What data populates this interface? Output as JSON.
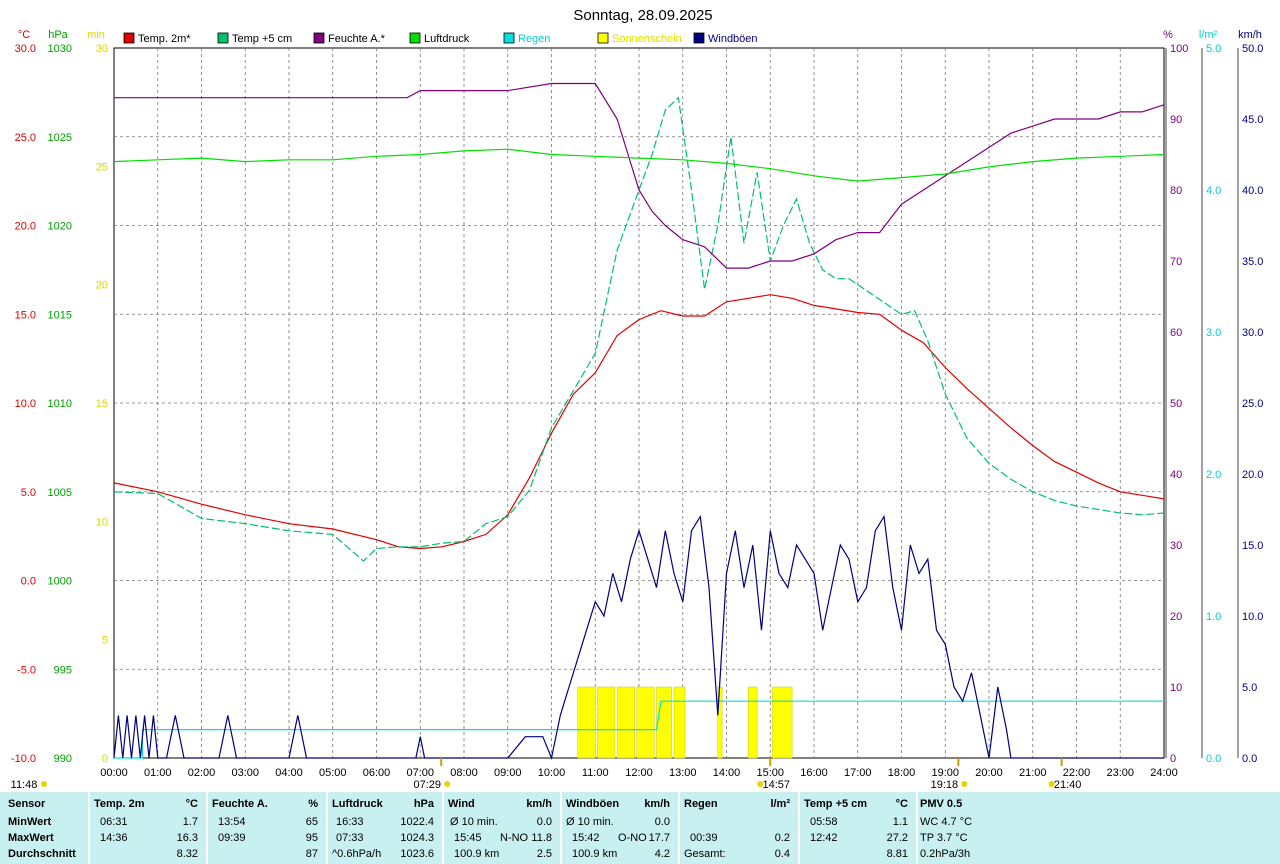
{
  "chart_data": {
    "type": "line",
    "title": "Sonntag, 28.09.2025",
    "x_range": [
      0,
      24
    ],
    "x_ticks": [
      "00:00",
      "01:00",
      "02:00",
      "03:00",
      "04:00",
      "05:00",
      "06:00",
      "07:00",
      "08:00",
      "09:00",
      "10:00",
      "11:00",
      "12:00",
      "13:00",
      "14:00",
      "15:00",
      "16:00",
      "17:00",
      "18:00",
      "19:00",
      "20:00",
      "21:00",
      "22:00",
      "23:00",
      "24:00"
    ],
    "grid": true,
    "legend_position": "top",
    "axes": {
      "temp": {
        "unit": "°C",
        "range": [
          -10,
          30
        ],
        "ticks": [
          "30.0",
          "25.0",
          "20.0",
          "15.0",
          "10.0",
          "5.0",
          "0.0",
          "-5.0",
          "-10.0"
        ],
        "color": "#e00000"
      },
      "pressure": {
        "unit": "hPa",
        "range": [
          990,
          1030
        ],
        "ticks": [
          "1030",
          "1025",
          "1020",
          "1015",
          "1010",
          "1005",
          "1000",
          "995",
          "990"
        ],
        "color": "#00a000"
      },
      "sun": {
        "unit": "min",
        "range": [
          0,
          30
        ],
        "ticks": [
          "30",
          "25",
          "20",
          "15",
          "10",
          "5",
          "0"
        ],
        "color": "#d8d800"
      },
      "humidity": {
        "unit": "%",
        "range": [
          0,
          100
        ],
        "ticks": [
          "100",
          "90",
          "80",
          "70",
          "60",
          "50",
          "40",
          "30",
          "20",
          "10",
          "0"
        ],
        "color": "#800080"
      },
      "rain": {
        "unit": "l/m²",
        "range": [
          0,
          5
        ],
        "ticks": [
          "5.0",
          "4.0",
          "3.0",
          "2.0",
          "1.0",
          "0.0"
        ],
        "color": "#00d0d0"
      },
      "wind": {
        "unit": "km/h",
        "range": [
          0,
          50
        ],
        "ticks": [
          "50.0",
          "45.0",
          "40.0",
          "35.0",
          "30.0",
          "25.0",
          "20.0",
          "15.0",
          "10.0",
          "5.0",
          "0.0"
        ],
        "color": "#000080"
      }
    },
    "series": [
      {
        "name": "Temp. 2m*",
        "color": "#e00000",
        "axis": "temp",
        "x": [
          0,
          1,
          2,
          3,
          4,
          5,
          6,
          6.5,
          7,
          7.5,
          8,
          8.5,
          9,
          9.5,
          10,
          10.5,
          11,
          11.5,
          12,
          12.5,
          13,
          13.5,
          14,
          14.5,
          15,
          15.5,
          16,
          16.5,
          17,
          17.5,
          18,
          18.5,
          19,
          19.5,
          20,
          20.5,
          21,
          21.5,
          22,
          22.5,
          23,
          23.5,
          24
        ],
        "y": [
          5.5,
          5.0,
          4.3,
          3.7,
          3.2,
          2.9,
          2.3,
          1.9,
          1.8,
          1.9,
          2.2,
          2.6,
          3.7,
          5.8,
          8.3,
          10.5,
          11.7,
          13.8,
          14.7,
          15.2,
          14.9,
          14.9,
          15.7,
          15.9,
          16.1,
          15.9,
          15.5,
          15.3,
          15.1,
          15.0,
          14.1,
          13.4,
          12.0,
          10.8,
          9.7,
          8.6,
          7.6,
          6.7,
          6.1,
          5.5,
          5.0,
          4.8,
          4.6
        ]
      },
      {
        "name": "Temp +5 cm",
        "color": "#00c070",
        "axis": "temp",
        "x": [
          0,
          1,
          2,
          3,
          4,
          5,
          5.7,
          6,
          6.5,
          7,
          7.5,
          8,
          8.5,
          9,
          9.5,
          10,
          10.5,
          11,
          11.5,
          12,
          12.3,
          12.6,
          12.9,
          13.2,
          13.5,
          13.8,
          14.1,
          14.4,
          14.7,
          15,
          15.3,
          15.6,
          15.9,
          16.2,
          16.5,
          16.8,
          17.1,
          17.4,
          17.7,
          18,
          18.3,
          18.6,
          19,
          19.5,
          20,
          20.5,
          21,
          21.5,
          22,
          22.5,
          23,
          23.5,
          24
        ],
        "y": [
          5.0,
          4.9,
          3.5,
          3.2,
          2.8,
          2.6,
          1.1,
          1.8,
          1.9,
          1.9,
          2.1,
          2.2,
          3.2,
          3.6,
          5.1,
          8.6,
          10.7,
          12.8,
          18.6,
          22.0,
          24.0,
          26.5,
          27.2,
          22.0,
          16.4,
          20.0,
          25.0,
          19.0,
          23.0,
          18.0,
          20.0,
          21.5,
          19.0,
          17.5,
          17.0,
          17.0,
          16.5,
          16.0,
          15.5,
          15.0,
          15.2,
          13.5,
          10.5,
          8.0,
          6.6,
          5.7,
          5.0,
          4.5,
          4.2,
          4.0,
          3.8,
          3.7,
          3.8
        ]
      },
      {
        "name": "Feuchte A.*",
        "color": "#800080",
        "axis": "humidity",
        "x": [
          0,
          1,
          2,
          3,
          4,
          5,
          6,
          6.7,
          7,
          8,
          9,
          10,
          11,
          11.5,
          12,
          12.3,
          12.6,
          13,
          13.5,
          14,
          14.5,
          15,
          15.5,
          16,
          16.5,
          17,
          17.5,
          18,
          18.5,
          19,
          19.5,
          20,
          20.5,
          21,
          21.5,
          22,
          22.5,
          23,
          23.5,
          24
        ],
        "y": [
          93,
          93,
          93,
          93,
          93,
          93,
          93,
          93,
          94,
          94,
          94,
          95,
          95,
          90,
          80,
          77,
          75,
          73,
          72,
          69,
          69,
          70,
          70,
          71,
          73,
          74,
          74,
          78,
          80,
          82,
          84,
          86,
          88,
          89,
          90,
          90,
          90,
          91,
          91,
          92
        ]
      },
      {
        "name": "Luftdruck",
        "color": "#00e000",
        "axis": "pressure",
        "x": [
          0,
          1,
          2,
          3,
          4,
          5,
          6,
          7,
          8,
          9,
          10,
          11,
          12,
          13,
          14,
          15,
          16,
          17,
          18,
          19,
          20,
          21,
          22,
          23,
          24
        ],
        "y": [
          1023.6,
          1023.7,
          1023.8,
          1023.6,
          1023.7,
          1023.7,
          1023.9,
          1024.0,
          1024.2,
          1024.3,
          1024.0,
          1023.9,
          1023.8,
          1023.7,
          1023.5,
          1023.2,
          1022.8,
          1022.5,
          1022.7,
          1022.9,
          1023.3,
          1023.6,
          1023.8,
          1023.9,
          1024.0
        ]
      },
      {
        "name": "Regen",
        "color": "#00e0e0",
        "axis": "rain",
        "x": [
          0,
          0.65,
          0.65,
          12.4,
          12.4,
          12.5,
          12.5,
          24
        ],
        "y": [
          0,
          0,
          0.2,
          0.2,
          0.2,
          0.4,
          0.4,
          0.4
        ]
      },
      {
        "name": "Sonnenschein",
        "color": "#ffff00",
        "axis": "sun",
        "bars": [
          [
            10.6,
            11.0
          ],
          [
            11.05,
            11.45
          ],
          [
            11.5,
            11.9
          ],
          [
            11.95,
            12.35
          ],
          [
            12.4,
            12.75
          ],
          [
            12.8,
            13.05
          ],
          [
            13.8,
            13.9
          ],
          [
            14.5,
            14.7
          ],
          [
            15.05,
            15.5
          ]
        ],
        "value": 3
      }
    ],
    "windboeen": {
      "name": "Windböen",
      "color": "#000080",
      "axis": "wind",
      "x": [
        0,
        0.1,
        0.2,
        0.3,
        0.4,
        0.5,
        0.6,
        0.7,
        0.8,
        0.9,
        1.0,
        1.2,
        1.4,
        1.6,
        1.8,
        2.0,
        2.2,
        2.4,
        2.6,
        2.8,
        3.0,
        3.2,
        3.4,
        4.0,
        4.2,
        4.4,
        4.6,
        5.0,
        6.0,
        6.9,
        7.0,
        7.1,
        8.0,
        9.0,
        9.4,
        9.8,
        10.0,
        10.2,
        10.4,
        10.6,
        10.8,
        11.0,
        11.2,
        11.4,
        11.6,
        11.8,
        12.0,
        12.2,
        12.4,
        12.6,
        12.8,
        13.0,
        13.2,
        13.4,
        13.6,
        13.8,
        14.0,
        14.2,
        14.4,
        14.6,
        14.8,
        15.0,
        15.2,
        15.4,
        15.6,
        15.8,
        16.0,
        16.2,
        16.4,
        16.6,
        16.8,
        17.0,
        17.2,
        17.4,
        17.6,
        17.8,
        18.0,
        18.2,
        18.4,
        18.6,
        18.8,
        19.0,
        19.2,
        19.4,
        19.6,
        19.8,
        20.0,
        20.2,
        20.4,
        20.5,
        21.0,
        22.0,
        23.0,
        24.0
      ],
      "y": [
        0,
        3,
        0,
        3,
        0,
        3,
        0,
        3,
        0,
        3,
        0,
        0,
        3,
        0,
        0,
        0,
        0,
        0,
        3,
        0,
        0,
        0,
        0,
        0,
        3,
        0,
        0,
        0,
        0,
        0,
        1.5,
        0,
        0,
        0,
        1.5,
        1.5,
        0,
        3,
        5,
        7,
        9,
        11,
        10,
        13,
        11,
        14,
        16,
        14,
        12,
        16,
        13,
        11,
        16,
        17,
        12,
        3,
        13,
        16,
        12,
        15,
        9,
        16,
        13,
        12,
        15,
        14,
        13,
        9,
        12,
        15,
        14,
        11,
        12,
        16,
        17,
        12,
        9,
        15,
        13,
        14,
        9,
        8,
        5,
        4,
        6,
        3,
        0,
        5,
        2,
        0,
        0,
        0,
        0,
        0
      ]
    },
    "event_labels": [
      "07:29",
      "14:57",
      "19:18",
      "21:40",
      "11:48"
    ]
  },
  "legend": [
    {
      "label": "Temp. 2m*",
      "color": "#e00000"
    },
    {
      "label": "Temp +5 cm",
      "color": "#00c070"
    },
    {
      "label": "Feuchte A.*",
      "color": "#800080"
    },
    {
      "label": "Luftdruck",
      "color": "#00e000"
    },
    {
      "label": "Regen",
      "color": "#00e0e0"
    },
    {
      "label": "Sonnenschein",
      "color": "#ffff00"
    },
    {
      "label": "Windböen",
      "color": "#000080"
    }
  ],
  "stats": {
    "row_labels": {
      "min": "MinWert",
      "max": "MaxWert",
      "avg": "Durchschnitt"
    },
    "sensor_label": "Sensor",
    "temp2m": {
      "header": "Temp. 2m",
      "unit": "°C",
      "min_time": "06:31",
      "min_val": "1.7",
      "max_time": "14:36",
      "max_val": "16.3",
      "avg": "8.32"
    },
    "humidity": {
      "header": "Feuchte A.",
      "unit": "%",
      "min_time": "13:54",
      "min_val": "65",
      "max_time": "09:39",
      "max_val": "95",
      "avg": "87"
    },
    "pressure": {
      "header": "Luftdruck",
      "unit": "hPa",
      "min_time": "16:33",
      "min_val": "1022.4",
      "max_time": "07:33",
      "max_val": "1024.3",
      "trend": "^0.6hPa/h",
      "avg": "1023.6"
    },
    "wind": {
      "header": "Wind",
      "unit": "km/h",
      "min_label": "Ø 10 min.",
      "min_val": "0.0",
      "max_time": "15:45",
      "max_dir": "N-NO",
      "max_val": "11.8",
      "dist": "100.9 km",
      "avg": "2.5"
    },
    "gusts": {
      "header": "Windböen",
      "unit": "km/h",
      "min_label": "Ø 10 min.",
      "min_val": "0.0",
      "max_time": "15:42",
      "max_dir": "O-NO",
      "max_val": "17.7",
      "dist": "100.9 km",
      "avg": "4.2"
    },
    "rain": {
      "header": "Regen",
      "unit": "l/m²",
      "max_time": "00:39",
      "max_val": "0.2",
      "total_label": "Gesamt:",
      "total": "0.4"
    },
    "temp5": {
      "header": "Temp +5 cm",
      "unit": "°C",
      "min_time": "05:58",
      "min_val": "1.1",
      "max_time": "12:42",
      "max_val": "27.2",
      "avg": "8.81"
    },
    "pmv": {
      "header": "PMV 0.5",
      "wc": "WC 4.7 °C",
      "tp": "TP 3.7 °C",
      "trend": "0.2hPa/3h"
    }
  }
}
